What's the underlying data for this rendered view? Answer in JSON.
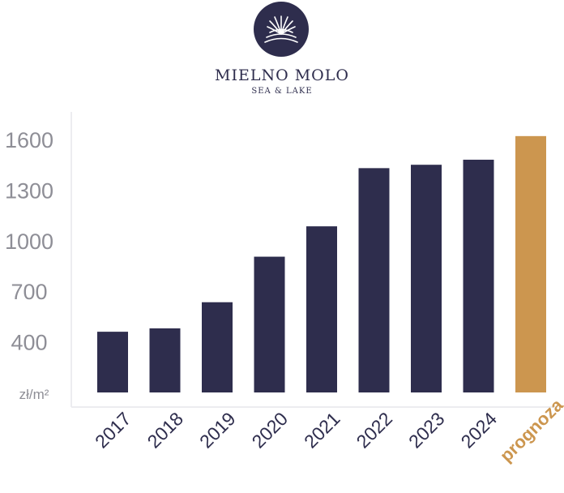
{
  "brand": {
    "name": "MIELNO MOLO",
    "subtitle": "SEA & LAKE"
  },
  "colors": {
    "bar": "#2e2d4d",
    "forecast": "#cc964f",
    "tick": "#8e8e96",
    "frame": "#ececf0",
    "brand": "#2e2d4d"
  },
  "chart_data": {
    "type": "bar",
    "categories": [
      "2017",
      "2018",
      "2019",
      "2020",
      "2021",
      "2022",
      "2023",
      "2024",
      "prognoza"
    ],
    "values": [
      460,
      480,
      635,
      905,
      1085,
      1430,
      1450,
      1480,
      1620
    ],
    "highlight_index": 8,
    "yticks": [
      1600,
      1300,
      1000,
      700,
      400
    ],
    "yunit": "zł/m²",
    "ylim": [
      100,
      1700
    ],
    "grid": false
  }
}
